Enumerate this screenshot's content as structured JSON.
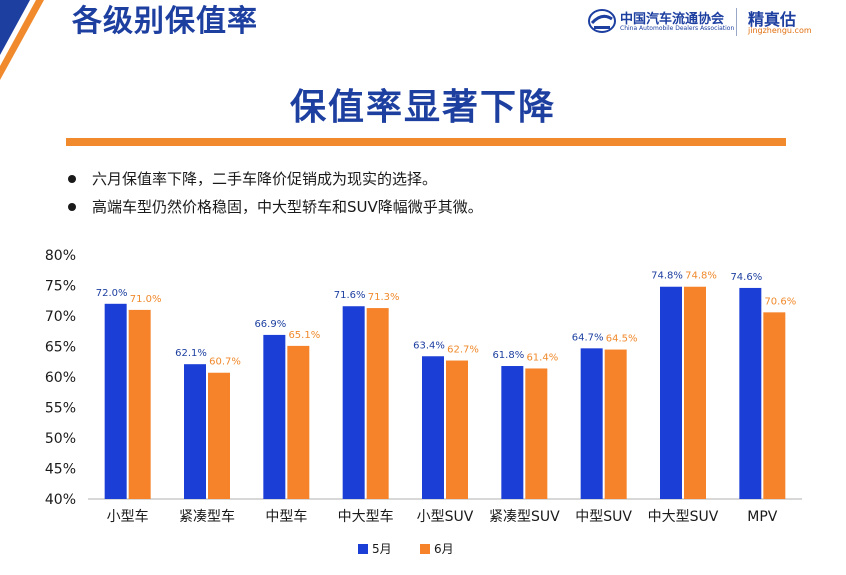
{
  "header": {
    "title": "各级别保值率"
  },
  "logos": {
    "association_cn": "中国汽车流通协会",
    "association_en": "China Automobile Dealers Association",
    "brand_cn": "精真估",
    "brand_url": "jingzhengu.com"
  },
  "colors": {
    "primary_blue": "#1d3fa0",
    "accent_orange": "#f08a2c",
    "bar_may": "#1b3fd6",
    "bar_june": "#f6832a"
  },
  "slide": {
    "title": "保值率显著下降",
    "bullets": [
      "六月保值率下降，二手车降价促销成为现实的选择。",
      "高端车型仍然价格稳固，中大型轿车和SUV降幅微乎其微。"
    ]
  },
  "chart_data": {
    "type": "bar",
    "categories": [
      "小型车",
      "紧凑型车",
      "中型车",
      "中大型车",
      "小型SUV",
      "紧凑型SUV",
      "中型SUV",
      "中大型SUV",
      "MPV"
    ],
    "series": [
      {
        "name": "5月",
        "values": [
          72.0,
          62.1,
          66.9,
          71.6,
          63.4,
          61.8,
          64.7,
          74.8,
          74.6
        ],
        "labels": [
          "72.0%",
          "62.1%",
          "66.9%",
          "71.6%",
          "63.4%",
          "61.8%",
          "64.7%",
          "74.8%",
          "74.6%"
        ]
      },
      {
        "name": "6月",
        "values": [
          71.0,
          60.7,
          65.1,
          71.3,
          62.7,
          61.4,
          64.5,
          74.8,
          70.6
        ],
        "labels": [
          "71.0%",
          "60.7%",
          "65.1%",
          "71.3%",
          "62.7%",
          "61.4%",
          "64.5%",
          "74.8%",
          "70.6%"
        ]
      }
    ],
    "ylim": [
      40,
      80
    ],
    "yticks": [
      40,
      45,
      50,
      55,
      60,
      65,
      70,
      75,
      80
    ],
    "ytick_labels": [
      "40%",
      "45%",
      "50%",
      "55%",
      "60%",
      "65%",
      "70%",
      "75%",
      "80%"
    ],
    "legend_position": "bottom-center",
    "grid": false,
    "title": "",
    "xlabel": "",
    "ylabel": ""
  }
}
